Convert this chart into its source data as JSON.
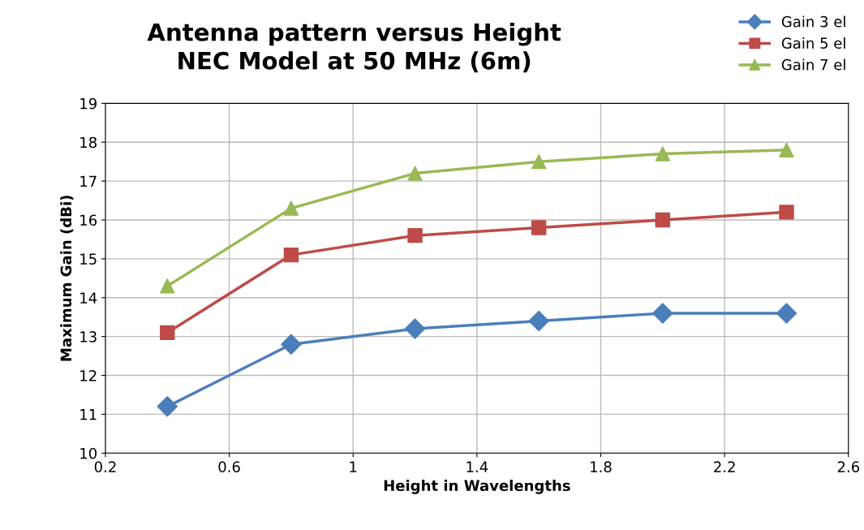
{
  "chart_data": {
    "type": "line",
    "title": "Antenna pattern versus Height\nNEC Model at 50 MHz (6m)",
    "xlabel": "Height in Wavelengths",
    "ylabel": "Maximum Gain (dBi)",
    "x": [
      0.4,
      0.8,
      1.2,
      1.6,
      2.0,
      2.4
    ],
    "series": [
      {
        "name": "Gain 3 el",
        "color": "#4a7ebb",
        "marker": "diamond",
        "values": [
          11.2,
          12.8,
          13.2,
          13.4,
          13.6,
          13.6
        ]
      },
      {
        "name": "Gain 5 el",
        "color": "#be4b48",
        "marker": "square",
        "values": [
          13.1,
          15.1,
          15.6,
          15.8,
          16.0,
          16.2
        ]
      },
      {
        "name": "Gain 7 el",
        "color": "#98b954",
        "marker": "triangle",
        "values": [
          14.3,
          16.3,
          17.2,
          17.5,
          17.7,
          17.8
        ]
      }
    ],
    "xlim": [
      0.2,
      2.6
    ],
    "xticks": [
      0.2,
      0.6,
      1,
      1.4,
      1.8,
      2.2,
      2.6
    ],
    "ylim": [
      10,
      19
    ],
    "yticks": [
      10,
      11,
      12,
      13,
      14,
      15,
      16,
      17,
      18,
      19
    ],
    "grid": true,
    "legend": "top right",
    "line_style": "solid"
  }
}
